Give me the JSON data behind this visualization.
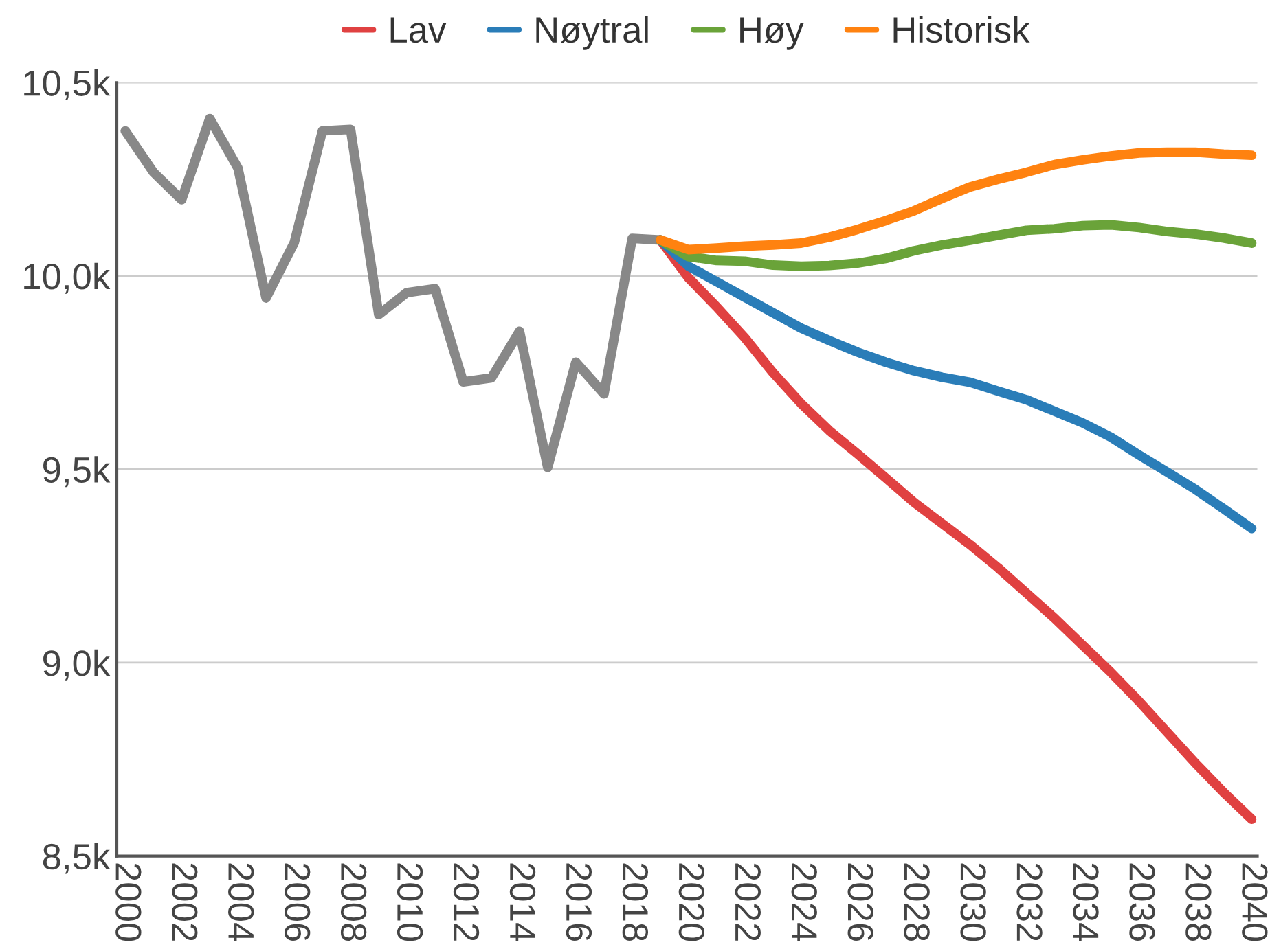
{
  "chart_data": {
    "type": "line",
    "x": [
      2019,
      2020,
      2021,
      2022,
      2023,
      2024,
      2025,
      2026,
      2027,
      2028,
      2029,
      2030,
      2031,
      2032,
      2033,
      2034,
      2035,
      2036,
      2037,
      2038,
      2039,
      2040
    ],
    "series": [
      {
        "name": "Lav",
        "color": "#e04141",
        "values": [
          10093,
          9995,
          9920,
          9840,
          9750,
          9670,
          9600,
          9540,
          9478,
          9415,
          9360,
          9305,
          9245,
          9180,
          9115,
          9045,
          8975,
          8900,
          8820,
          8740,
          8665,
          8595
        ]
      },
      {
        "name": "Nøytral",
        "color": "#2a7db8",
        "values": [
          10093,
          10025,
          9985,
          9945,
          9905,
          9865,
          9833,
          9803,
          9777,
          9755,
          9738,
          9725,
          9702,
          9680,
          9650,
          9620,
          9583,
          9537,
          9493,
          9448,
          9398,
          9347
        ]
      },
      {
        "name": "Høy",
        "color": "#6aa339",
        "values": [
          10093,
          10050,
          10040,
          10038,
          10028,
          10025,
          10027,
          10033,
          10045,
          10065,
          10080,
          10092,
          10105,
          10118,
          10122,
          10130,
          10132,
          10125,
          10115,
          10108,
          10098,
          10085
        ]
      },
      {
        "name": "Historisk",
        "color": "#ff8210",
        "values": [
          10093,
          10068,
          10072,
          10077,
          10080,
          10085,
          10100,
          10120,
          10143,
          10168,
          10200,
          10230,
          10250,
          10268,
          10288,
          10300,
          10310,
          10318,
          10320,
          10320,
          10315,
          10312
        ]
      },
      {
        "color": "#888888",
        "x": [
          2000,
          2001,
          2002,
          2003,
          2004,
          2005,
          2006,
          2007,
          2008,
          2009,
          2010,
          2011,
          2012,
          2013,
          2014,
          2015,
          2016,
          2017,
          2018,
          2019
        ],
        "values": [
          10375,
          10268,
          10197,
          10407,
          10279,
          9943,
          10086,
          10375,
          10379,
          9900,
          9957,
          9967,
          9726,
          9736,
          9857,
          9505,
          9777,
          9695,
          10097,
          10093
        ]
      }
    ],
    "xlim": [
      1999.7,
      2040.2
    ],
    "xticks": [
      2000,
      2002,
      2004,
      2006,
      2008,
      2010,
      2012,
      2014,
      2016,
      2018,
      2020,
      2022,
      2024,
      2026,
      2028,
      2030,
      2032,
      2034,
      2036,
      2038,
      2040
    ],
    "ylim": [
      8500,
      10500
    ],
    "yticks": [
      {
        "value": 8500,
        "label": "8,5k"
      },
      {
        "value": 9000,
        "label": "9,0k"
      },
      {
        "value": 9500,
        "label": "9,5k"
      },
      {
        "value": 10000,
        "label": "10,0k"
      },
      {
        "value": 10500,
        "label": "10,5k"
      }
    ],
    "grid": "y",
    "legend": "top",
    "marker": "none",
    "line_style": "solid"
  }
}
